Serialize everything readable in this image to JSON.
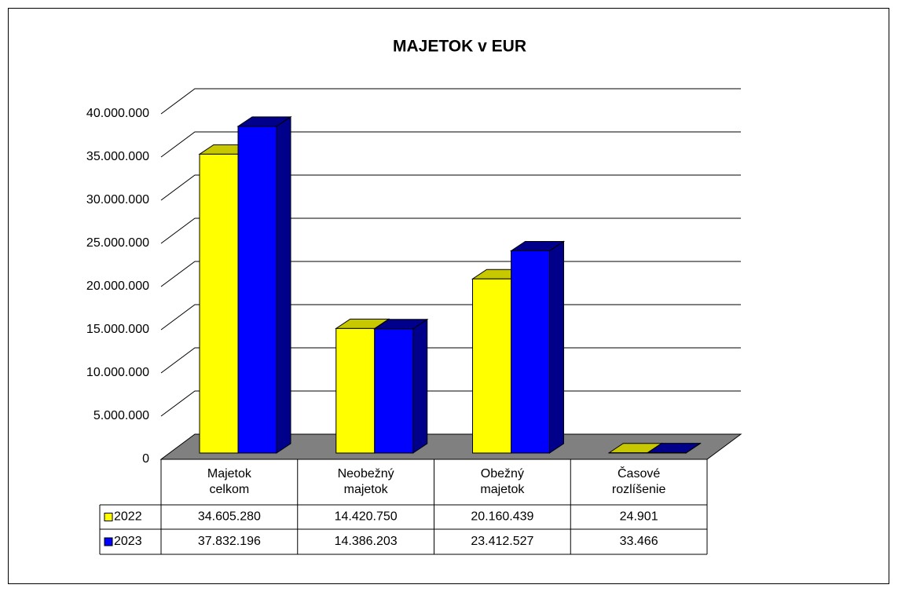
{
  "chart_data": {
    "type": "bar3d",
    "title": "MAJETOK  v EUR",
    "categories": [
      "Majetok celkom",
      "Neobežný majetok",
      "Obežný majetok",
      "Časové rozlíšenie"
    ],
    "series": [
      {
        "name": "2022",
        "color": "#ffff00",
        "values": [
          34605280,
          14420750,
          20160439,
          24901
        ],
        "value_labels": [
          "34.605.280",
          "14.420.750",
          "20.160.439",
          "24.901"
        ]
      },
      {
        "name": "2023",
        "color": "#0000ff",
        "values": [
          37832196,
          14386203,
          23412527,
          33466
        ],
        "value_labels": [
          "37.832.196",
          "14.386.203",
          "23.412.527",
          "33.466"
        ]
      }
    ],
    "ylim": [
      0,
      40000000
    ],
    "yticks": [
      0,
      {
        "value": 5000000,
        "label": "5.000.000"
      },
      {
        "value": 10000000,
        "label": "10.000.000"
      },
      {
        "value": 15000000,
        "label": "15.000.000"
      },
      {
        "value": 20000000,
        "label": "20.000.000"
      },
      {
        "value": 25000000,
        "label": "25.000.000"
      },
      {
        "value": 30000000,
        "label": "30.000.000"
      },
      {
        "value": 35000000,
        "label": "35.000.000"
      },
      {
        "value": 40000000,
        "label": "40.000.000"
      }
    ],
    "grid": true,
    "data_table": true
  }
}
